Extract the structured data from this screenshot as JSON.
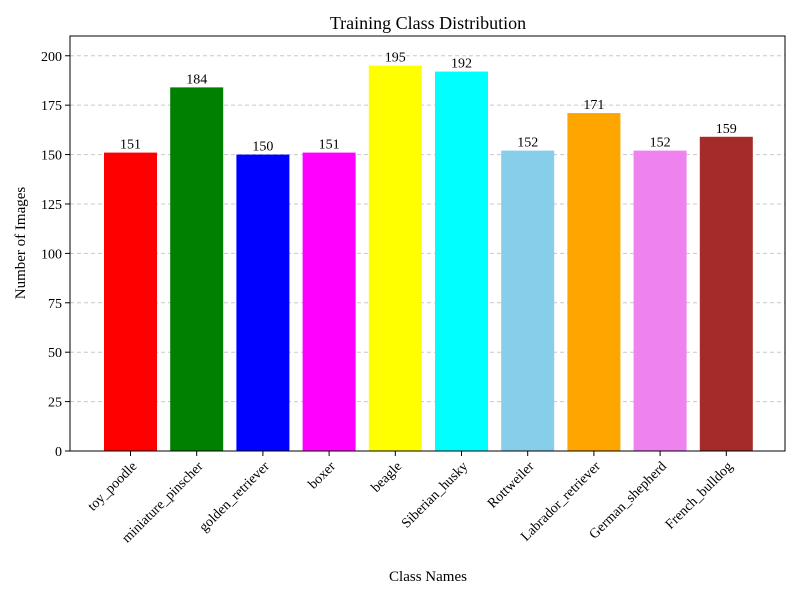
{
  "chart_data": {
    "type": "bar",
    "title": "Training Class Distribution",
    "xlabel": "Class Names",
    "ylabel": "Number of Images",
    "categories": [
      "toy_poodle",
      "miniature_pinscher",
      "golden_retriever",
      "boxer",
      "beagle",
      "Siberian_husky",
      "Rottweiler",
      "Labrador_retriever",
      "German_shepherd",
      "French_bulldog"
    ],
    "values": [
      151,
      184,
      150,
      151,
      195,
      192,
      152,
      171,
      152,
      159
    ],
    "colors": [
      "#ff0000",
      "#008000",
      "#0000ff",
      "#ff00ff",
      "#ffff00",
      "#00ffff",
      "#87ceeb",
      "#ffa500",
      "#ee82ee",
      "#a52a2a"
    ],
    "ylim": [
      0,
      210
    ],
    "yticks": [
      0,
      25,
      50,
      75,
      100,
      125,
      150,
      175,
      200
    ],
    "grid": "y-dashed",
    "legend": "none"
  }
}
